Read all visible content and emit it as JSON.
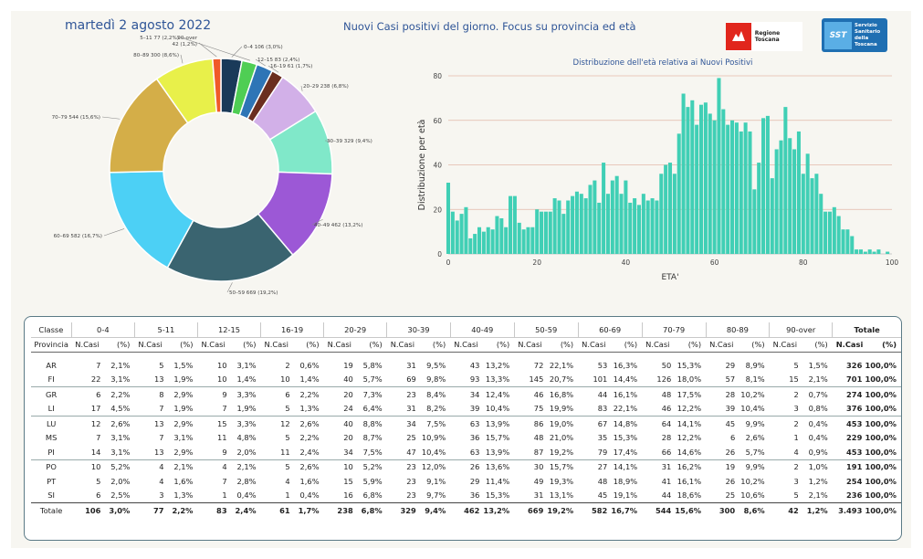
{
  "header": {
    "date": "martedì 2 agosto 2022",
    "title": "Nuovi Casi positivi del giorno. Focus su provincia ed età",
    "logo_rt": "Regione Toscana",
    "logo_sst_mark": "SST",
    "logo_sst_text": [
      "Servizio",
      "Sanitario",
      "della",
      "Toscana"
    ]
  },
  "chart_data": [
    {
      "type": "pie",
      "title": "",
      "slices": [
        {
          "label": "0-4",
          "value": 106,
          "pct": "3,0%",
          "color": "#1a3a59"
        },
        {
          "label": "5-11",
          "value": 77,
          "pct": "2,2%",
          "color": "#4fce54"
        },
        {
          "label": "12-15",
          "value": 83,
          "pct": "2,4%",
          "color": "#2e75b6"
        },
        {
          "label": "16-19",
          "value": 61,
          "pct": "1,7%",
          "color": "#6b2e1f"
        },
        {
          "label": "20-29",
          "value": 238,
          "pct": "6,8%",
          "color": "#d2b0e8"
        },
        {
          "label": "30-39",
          "value": 329,
          "pct": "9,4%",
          "color": "#80e8c9"
        },
        {
          "label": "40-49",
          "value": 462,
          "pct": "13,2%",
          "color": "#9c58d6"
        },
        {
          "label": "50-59",
          "value": 669,
          "pct": "19,2%",
          "color": "#3a6470"
        },
        {
          "label": "60-69",
          "value": 582,
          "pct": "16,7%",
          "color": "#4cd0f5"
        },
        {
          "label": "70-79",
          "value": 544,
          "pct": "15,6%",
          "color": "#d4ae48"
        },
        {
          "label": "80-89",
          "value": 300,
          "pct": "8,6%",
          "color": "#e8f04a"
        },
        {
          "label": "90-over",
          "value": 42,
          "pct": "1,2%",
          "color": "#f05a28"
        }
      ]
    },
    {
      "type": "bar",
      "title": "Distribuzione dell'età relativa ai Nuovi Positivi",
      "xlabel": "ETA'",
      "ylabel": "Distribuzione per età",
      "xlim": [
        0,
        100
      ],
      "ylim": [
        0,
        80
      ],
      "xticks": [
        0,
        20,
        40,
        60,
        80,
        100
      ],
      "yticks": [
        0,
        20,
        40,
        60,
        80
      ],
      "color": "#40cfb5",
      "x": [
        0,
        1,
        2,
        3,
        4,
        5,
        6,
        7,
        8,
        9,
        10,
        11,
        12,
        13,
        14,
        15,
        16,
        17,
        18,
        19,
        20,
        21,
        22,
        23,
        24,
        25,
        26,
        27,
        28,
        29,
        30,
        31,
        32,
        33,
        34,
        35,
        36,
        37,
        38,
        39,
        40,
        41,
        42,
        43,
        44,
        45,
        46,
        47,
        48,
        49,
        50,
        51,
        52,
        53,
        54,
        55,
        56,
        57,
        58,
        59,
        60,
        61,
        62,
        63,
        64,
        65,
        66,
        67,
        68,
        69,
        70,
        71,
        72,
        73,
        74,
        75,
        76,
        77,
        78,
        79,
        80,
        81,
        82,
        83,
        84,
        85,
        86,
        87,
        88,
        89,
        90,
        91,
        92,
        93,
        94,
        95,
        96,
        97,
        98,
        99,
        100
      ],
      "values": [
        32,
        19,
        15,
        18,
        21,
        7,
        9,
        12,
        10,
        12,
        11,
        17,
        16,
        12,
        26,
        26,
        14,
        11,
        12,
        12,
        20,
        19,
        19,
        19,
        25,
        24,
        18,
        24,
        26,
        28,
        27,
        25,
        31,
        33,
        23,
        41,
        27,
        33,
        35,
        27,
        33,
        23,
        25,
        22,
        27,
        24,
        25,
        24,
        36,
        40,
        41,
        36,
        54,
        72,
        66,
        69,
        58,
        67,
        68,
        63,
        60,
        79,
        65,
        58,
        60,
        59,
        55,
        59,
        55,
        29,
        41,
        61,
        62,
        34,
        47,
        51,
        66,
        52,
        47,
        55,
        36,
        45,
        34,
        36,
        27,
        19,
        19,
        21,
        17,
        11,
        11,
        8,
        2,
        2,
        1,
        2,
        1,
        2,
        0,
        1,
        0
      ]
    }
  ],
  "pie_labels": [
    "0–4 106 (3,0%)",
    "5–11 77 (2,2%)",
    "12–15 83 (2,4%)",
    "16–19 61 (1,7%)",
    "20–29 238 (6,8%)",
    "30–39 329 (9,4%)",
    "40–49 462 (13,2%)",
    "50–59 669 (19,2%)",
    "60–69 582 (16,7%)",
    "70–79 544 (15,6%)",
    "80–89 300 (8,6%)",
    "90-over 42 (1,2%)"
  ],
  "table": {
    "classe_label": "Classe",
    "provincia_label": "Provincia",
    "groups": [
      "0-4",
      "5-11",
      "12-15",
      "16-19",
      "20-29",
      "30-39",
      "40-49",
      "50-59",
      "60-69",
      "70-79",
      "80-89",
      "90-over",
      "Totale"
    ],
    "sub_n": "N.Casi",
    "sub_p": "(%)",
    "rows": [
      [
        "AR",
        "7",
        "2,1%",
        "5",
        "1,5%",
        "10",
        "3,1%",
        "2",
        "0,6%",
        "19",
        "5,8%",
        "31",
        "9,5%",
        "43",
        "13,2%",
        "72",
        "22,1%",
        "53",
        "16,3%",
        "50",
        "15,3%",
        "29",
        "8,9%",
        "5",
        "1,5%",
        "326",
        "100,0%"
      ],
      [
        "FI",
        "22",
        "3,1%",
        "13",
        "1,9%",
        "10",
        "1,4%",
        "10",
        "1,4%",
        "40",
        "5,7%",
        "69",
        "9,8%",
        "93",
        "13,3%",
        "145",
        "20,7%",
        "101",
        "14,4%",
        "126",
        "18,0%",
        "57",
        "8,1%",
        "15",
        "2,1%",
        "701",
        "100,0%"
      ],
      [
        "GR",
        "6",
        "2,2%",
        "8",
        "2,9%",
        "9",
        "3,3%",
        "6",
        "2,2%",
        "20",
        "7,3%",
        "23",
        "8,4%",
        "34",
        "12,4%",
        "46",
        "16,8%",
        "44",
        "16,1%",
        "48",
        "17,5%",
        "28",
        "10,2%",
        "2",
        "0,7%",
        "274",
        "100,0%"
      ],
      [
        "LI",
        "17",
        "4,5%",
        "7",
        "1,9%",
        "7",
        "1,9%",
        "5",
        "1,3%",
        "24",
        "6,4%",
        "31",
        "8,2%",
        "39",
        "10,4%",
        "75",
        "19,9%",
        "83",
        "22,1%",
        "46",
        "12,2%",
        "39",
        "10,4%",
        "3",
        "0,8%",
        "376",
        "100,0%"
      ],
      [
        "LU",
        "12",
        "2,6%",
        "13",
        "2,9%",
        "15",
        "3,3%",
        "12",
        "2,6%",
        "40",
        "8,8%",
        "34",
        "7,5%",
        "63",
        "13,9%",
        "86",
        "19,0%",
        "67",
        "14,8%",
        "64",
        "14,1%",
        "45",
        "9,9%",
        "2",
        "0,4%",
        "453",
        "100,0%"
      ],
      [
        "MS",
        "7",
        "3,1%",
        "7",
        "3,1%",
        "11",
        "4,8%",
        "5",
        "2,2%",
        "20",
        "8,7%",
        "25",
        "10,9%",
        "36",
        "15,7%",
        "48",
        "21,0%",
        "35",
        "15,3%",
        "28",
        "12,2%",
        "6",
        "2,6%",
        "1",
        "0,4%",
        "229",
        "100,0%"
      ],
      [
        "PI",
        "14",
        "3,1%",
        "13",
        "2,9%",
        "9",
        "2,0%",
        "11",
        "2,4%",
        "34",
        "7,5%",
        "47",
        "10,4%",
        "63",
        "13,9%",
        "87",
        "19,2%",
        "79",
        "17,4%",
        "66",
        "14,6%",
        "26",
        "5,7%",
        "4",
        "0,9%",
        "453",
        "100,0%"
      ],
      [
        "PO",
        "10",
        "5,2%",
        "4",
        "2,1%",
        "4",
        "2,1%",
        "5",
        "2,6%",
        "10",
        "5,2%",
        "23",
        "12,0%",
        "26",
        "13,6%",
        "30",
        "15,7%",
        "27",
        "14,1%",
        "31",
        "16,2%",
        "19",
        "9,9%",
        "2",
        "1,0%",
        "191",
        "100,0%"
      ],
      [
        "PT",
        "5",
        "2,0%",
        "4",
        "1,6%",
        "7",
        "2,8%",
        "4",
        "1,6%",
        "15",
        "5,9%",
        "23",
        "9,1%",
        "29",
        "11,4%",
        "49",
        "19,3%",
        "48",
        "18,9%",
        "41",
        "16,1%",
        "26",
        "10,2%",
        "3",
        "1,2%",
        "254",
        "100,0%"
      ],
      [
        "SI",
        "6",
        "2,5%",
        "3",
        "1,3%",
        "1",
        "0,4%",
        "1",
        "0,4%",
        "16",
        "6,8%",
        "23",
        "9,7%",
        "36",
        "15,3%",
        "31",
        "13,1%",
        "45",
        "19,1%",
        "44",
        "18,6%",
        "25",
        "10,6%",
        "5",
        "2,1%",
        "236",
        "100,0%"
      ]
    ],
    "total": [
      "Totale",
      "106",
      "3,0%",
      "77",
      "2,2%",
      "83",
      "2,4%",
      "61",
      "1,7%",
      "238",
      "6,8%",
      "329",
      "9,4%",
      "462",
      "13,2%",
      "669",
      "19,2%",
      "582",
      "16,7%",
      "544",
      "15,6%",
      "300",
      "8,6%",
      "42",
      "1,2%",
      "3.493",
      "100,0%"
    ]
  }
}
